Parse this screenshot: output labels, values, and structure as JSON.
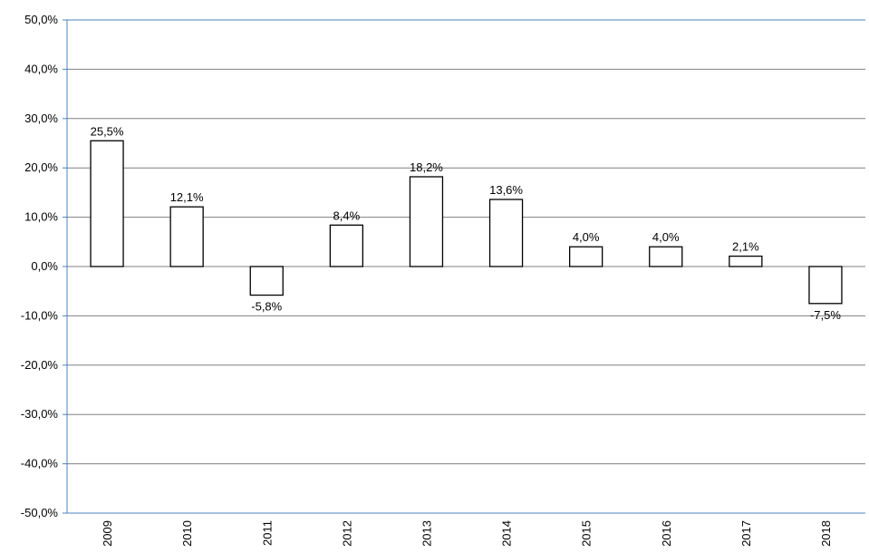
{
  "chart_data": {
    "type": "bar",
    "title": "",
    "xlabel": "",
    "ylabel": "",
    "categories": [
      "2009",
      "2010",
      "2011",
      "2012",
      "2013",
      "2014",
      "2015",
      "2016",
      "2017",
      "2018"
    ],
    "values": [
      25.5,
      12.1,
      -5.8,
      8.4,
      18.2,
      13.6,
      4.0,
      4.0,
      2.1,
      -7.5
    ],
    "data_labels": [
      "25,5%",
      "12,1%",
      "-5,8%",
      "8,4%",
      "18,2%",
      "13,6%",
      "4,0%",
      "4,0%",
      "2,1%",
      "-7,5%"
    ],
    "ylim": [
      -50,
      50
    ],
    "y_ticks": [
      50,
      40,
      30,
      20,
      10,
      0,
      -10,
      -20,
      -30,
      -40,
      -50
    ],
    "y_tick_labels": [
      "50,0%",
      "40,0%",
      "30,0%",
      "20,0%",
      "10,0%",
      "0,0%",
      "-10,0%",
      "-20,0%",
      "-30,0%",
      "-40,0%",
      "-50,0%"
    ],
    "grid": true,
    "legend": "none",
    "colors": {
      "bar_fill": "#ffffff",
      "bar_stroke": "#000000",
      "axis": "#4f81bd",
      "grid": "#808080"
    }
  }
}
